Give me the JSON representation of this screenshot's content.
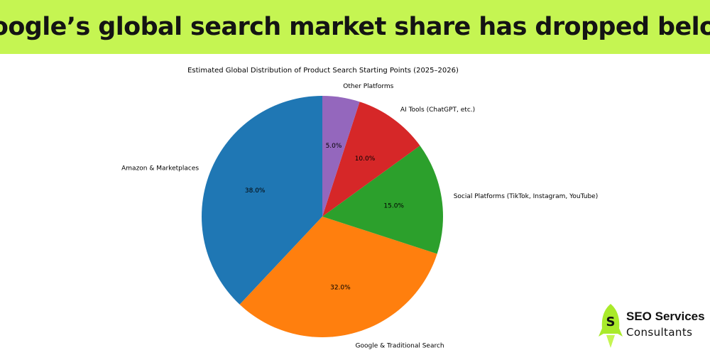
{
  "header": {
    "title": "Google’s global search market share has dropped below"
  },
  "chart_data": {
    "type": "pie",
    "title": "Estimated Global Distribution of Product Search Starting Points (2025–2026)",
    "start_angle_deg": 90,
    "direction": "counterclockwise",
    "legend": "none",
    "slices": [
      {
        "label": "Amazon & Marketplaces",
        "value": 38.0,
        "pct_label": "38.0%",
        "color": "#1f77b4"
      },
      {
        "label": "Google & Traditional Search",
        "value": 32.0,
        "pct_label": "32.0%",
        "color": "#ff7f0e"
      },
      {
        "label": "Social Platforms (TikTok, Instagram, YouTube)",
        "value": 15.0,
        "pct_label": "15.0%",
        "color": "#2ca02c"
      },
      {
        "label": "AI Tools (ChatGPT, etc.)",
        "value": 10.0,
        "pct_label": "10.0%",
        "color": "#d62728"
      },
      {
        "label": "Other Platforms",
        "value": 5.0,
        "pct_label": "5.0%",
        "color": "#9467bd"
      }
    ]
  },
  "brand": {
    "line1": "SEO Services",
    "line2": "Consultants",
    "logo_letter": "S",
    "logo_icon": "rocket-icon",
    "accent_color": "#a9ea2a"
  }
}
